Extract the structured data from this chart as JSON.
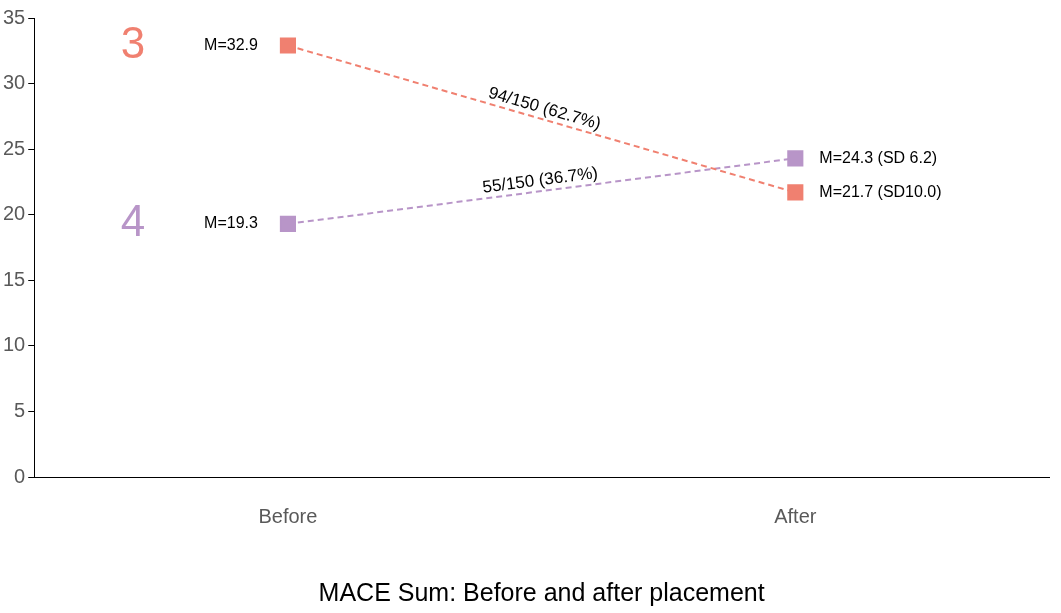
{
  "chart_data": {
    "type": "line",
    "xlabel": "MACE Sum: Before and after placement",
    "categories": [
      "Before",
      "After"
    ],
    "series": [
      {
        "name": "3",
        "color": "#f08070",
        "values": [
          32.9,
          21.7
        ],
        "value_labels": [
          "M=32.9",
          "M=21.7 (SD10.0)"
        ]
      },
      {
        "name": "4",
        "color": "#b895c8",
        "values": [
          19.3,
          24.3
        ],
        "value_labels": [
          "M=19.3",
          "M=24.3 (SD 6.2)"
        ]
      }
    ],
    "annotations": [
      "94/150 (62.7%)",
      "55/150 (36.7%)"
    ],
    "ylim": [
      0,
      35
    ],
    "yticks": [
      0,
      5,
      10,
      15,
      20,
      25,
      30,
      35
    ],
    "grid": false,
    "legend": false,
    "marker": "square",
    "line_style": "dashed"
  }
}
